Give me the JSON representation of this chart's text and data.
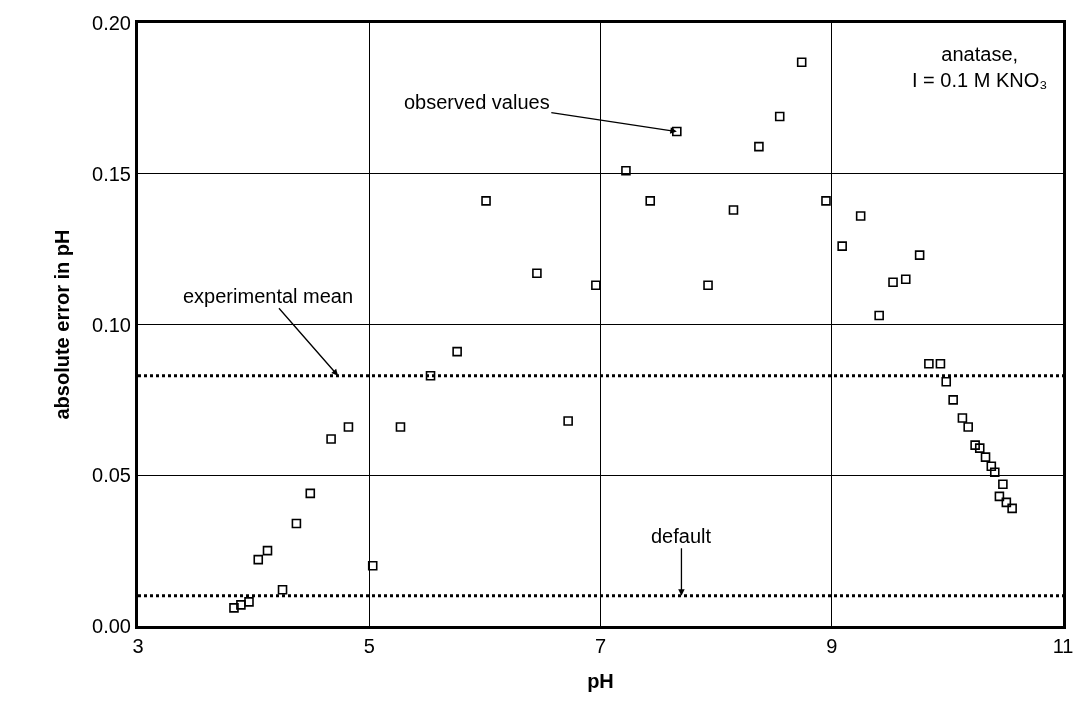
{
  "chart_data": {
    "type": "scatter",
    "xlabel": "pH",
    "ylabel": "absolute error in pH",
    "x": [
      3.83,
      3.89,
      3.96,
      4.04,
      4.12,
      4.25,
      4.37,
      4.49,
      4.67,
      4.82,
      5.03,
      5.27,
      5.53,
      5.76,
      6.01,
      6.45,
      6.72,
      6.96,
      7.22,
      7.43,
      7.66,
      7.93,
      8.15,
      8.37,
      8.55,
      8.74,
      8.95,
      9.09,
      9.25,
      9.41,
      9.53,
      9.64,
      9.76,
      9.84,
      9.94,
      9.99,
      10.05,
      10.13,
      10.18,
      10.24,
      10.28,
      10.33,
      10.38,
      10.41,
      10.45,
      10.48,
      10.51,
      10.56
    ],
    "series": [
      {
        "color": "#000000",
        "values": [
          0.006,
          0.007,
          0.008,
          0.022,
          0.025,
          0.012,
          0.034,
          0.044,
          0.062,
          0.066,
          0.02,
          0.066,
          0.083,
          0.091,
          0.141,
          0.117,
          0.068,
          0.113,
          0.151,
          0.141,
          0.164,
          0.113,
          0.138,
          0.159,
          0.169,
          0.187,
          0.141,
          0.126,
          0.136,
          0.103,
          0.114,
          0.115,
          0.123,
          0.087,
          0.087,
          0.081,
          0.075,
          0.069,
          0.066,
          0.06,
          0.059,
          0.056,
          0.053,
          0.051,
          0.043,
          0.047,
          0.041,
          0.039
        ]
      }
    ],
    "marker": "square",
    "grid": true,
    "xlim": [
      3,
      11
    ],
    "xticks": [
      3,
      5,
      7,
      9,
      11
    ],
    "ylim": [
      0,
      0.2
    ],
    "yticks": [
      {
        "value": 0,
        "label": "0.00"
      },
      {
        "value": 0.05,
        "label": "0.05"
      },
      {
        "value": 0.1,
        "label": "0.10"
      },
      {
        "value": 0.15,
        "label": "0.15"
      },
      {
        "value": 0.2,
        "label": "0.20"
      }
    ],
    "ref_lines": [
      {
        "axis": "y",
        "value": 0.083,
        "color": "#000000",
        "line_style": "dotted"
      },
      {
        "axis": "y",
        "value": 0.01,
        "color": "#000000",
        "line_style": "dotted"
      }
    ],
    "annotations": [
      {
        "text": "observed values",
        "x": 7.66,
        "y": 0.164
      },
      {
        "text": "experimental mean",
        "x": 4.73,
        "y": 0.083
      },
      {
        "text": "default",
        "x": 7.7,
        "y": 0.01
      },
      "anatase,\nI = 0.1 M KNO₃"
    ]
  }
}
